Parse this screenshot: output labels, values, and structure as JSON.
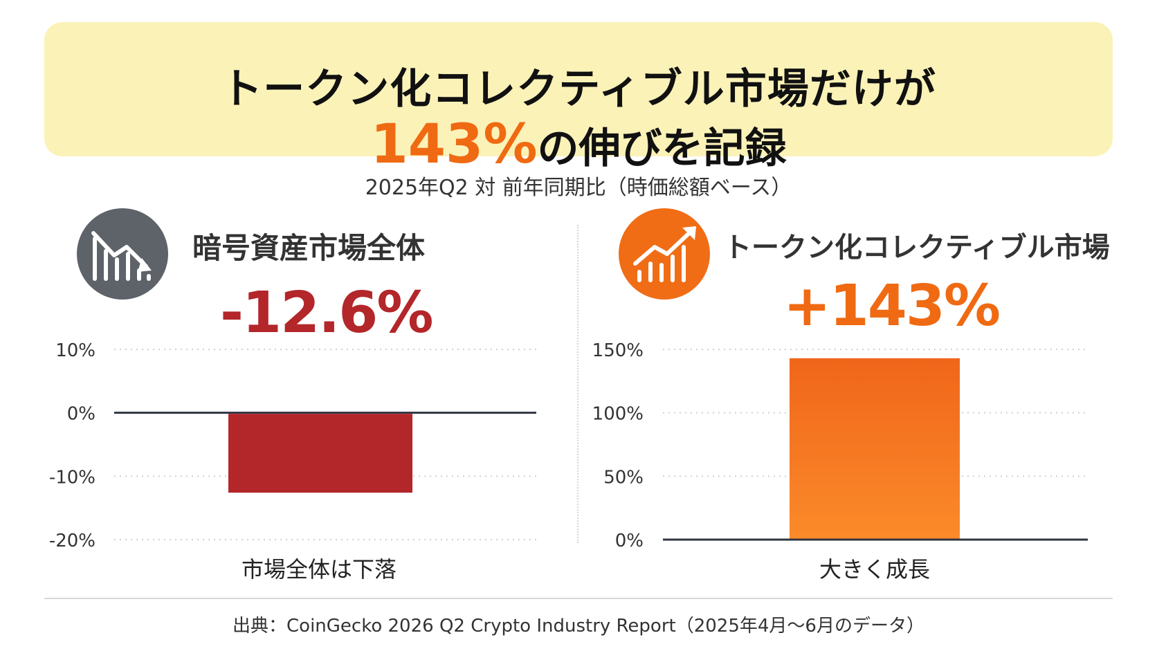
{
  "title": {
    "line1": "トークン化コレクティブル市場だけが",
    "line2_accent": "143%",
    "line2_rest": "の伸びを記録"
  },
  "subtitle": "2025年Q2 対 前年同期比（時価総額ベース）",
  "left_panel": {
    "icon": "chart-down-icon",
    "heading": "暗号資産市場全体",
    "big_value": "-12.6%",
    "caption": "市場全体は下落",
    "color": "#b3262a"
  },
  "right_panel": {
    "icon": "chart-up-icon",
    "heading": "トークン化コレクティブル市場",
    "big_value": "+143%",
    "caption": "大きく成長",
    "color": "#ef6a12"
  },
  "source": "出典：CoinGecko 2026 Q2 Crypto Industry Report（2025年4月〜6月のデータ）",
  "chart_data": [
    {
      "type": "bar",
      "categories": [
        "暗号資産市場全体"
      ],
      "values": [
        -12.6
      ],
      "ylim": [
        -20,
        10
      ],
      "yticks": [
        10,
        0,
        -10,
        -20
      ],
      "tick_labels": [
        "10%",
        "0%",
        "-10%",
        "-20%"
      ],
      "grid": true,
      "color": "#b3262a"
    },
    {
      "type": "bar",
      "categories": [
        "トークン化コレクティブル市場"
      ],
      "values": [
        143
      ],
      "ylim": [
        0,
        150
      ],
      "yticks": [
        150,
        100,
        50,
        0
      ],
      "tick_labels": [
        "150%",
        "100%",
        "50%",
        "0%"
      ],
      "grid": true,
      "color": "#ef6a12"
    }
  ]
}
